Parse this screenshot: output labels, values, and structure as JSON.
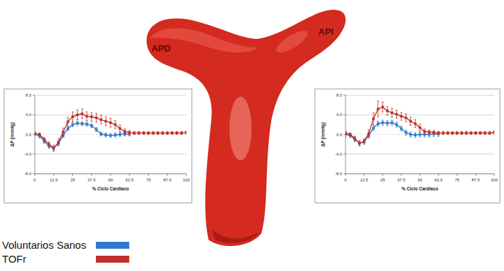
{
  "vessel_labels": [
    "APD",
    "API"
  ],
  "chart_data": [
    {
      "type": "line",
      "xlabel": "% Ciclo Cardiaco",
      "ylabel": "ΔP (mmHg)",
      "x": [
        0,
        3.125,
        6.25,
        9.375,
        12.5,
        15.625,
        18.75,
        21.875,
        25,
        28.125,
        31.25,
        34.375,
        37.5,
        40.625,
        43.75,
        46.875,
        50,
        53.125,
        56.25,
        59.375,
        62.5,
        65.625,
        68.75,
        71.875,
        75,
        78.125,
        81.25,
        84.375,
        87.5,
        90.625,
        93.75,
        96.875,
        100
      ],
      "xlim": [
        0,
        100
      ],
      "xticks": [
        0,
        12.5,
        25,
        37.5,
        50,
        62.5,
        75,
        87.5,
        100
      ],
      "ylim": [
        -8,
        8
      ],
      "yticks": [
        {
          "value": -8,
          "label": "-8.0"
        },
        {
          "value": -4,
          "label": "-4.0"
        },
        {
          "value": 0,
          "label": "0.0"
        },
        {
          "value": 4,
          "label": "4.0"
        },
        {
          "value": 8,
          "label": "8.0"
        }
      ],
      "grid": true,
      "legend": "bottom-left",
      "series": [
        {
          "name": "Voluntarios Sanos",
          "color": "#2f78d0",
          "marker": "square",
          "line_style": "solid",
          "values": [
            0.1,
            -0.3,
            -1.4,
            -2.4,
            -2.8,
            -1.8,
            -0.2,
            1.2,
            2.0,
            2.3,
            2.2,
            2.1,
            1.8,
            1.0,
            0.1,
            -0.1,
            -0.2,
            -0.1,
            0.0,
            0.1,
            0.1,
            null,
            null,
            null,
            null,
            null,
            null,
            null,
            null,
            null,
            null,
            null,
            null
          ],
          "errors": [
            0.4,
            0.4,
            0.4,
            0.4,
            0.4,
            0.4,
            0.4,
            0.4,
            0.4,
            0.4,
            0.4,
            0.4,
            0.4,
            0.4,
            0.4,
            0.4,
            0.4,
            0.4,
            0.4,
            0.4,
            0.4,
            null,
            null,
            null,
            null,
            null,
            null,
            null,
            null,
            null,
            null,
            null,
            null
          ]
        },
        {
          "name": "TOFr",
          "color": "#c0302a",
          "marker": "square",
          "line_style": "solid",
          "values": [
            0.2,
            0.0,
            -1.0,
            -2.0,
            -2.8,
            -1.6,
            0.5,
            2.6,
            3.6,
            4.0,
            4.2,
            3.7,
            3.6,
            3.4,
            3.0,
            2.7,
            2.4,
            2.0,
            1.2,
            0.6,
            0.4,
            0.3,
            0.3,
            0.3,
            0.3,
            0.3,
            0.3,
            0.3,
            0.3,
            0.3,
            0.3,
            0.3,
            0.4
          ],
          "errors": [
            0.3,
            0.3,
            0.4,
            0.5,
            0.6,
            0.7,
            0.8,
            0.9,
            1.0,
            1.0,
            1.0,
            0.9,
            0.9,
            0.9,
            0.9,
            0.9,
            0.9,
            0.8,
            0.7,
            0.5,
            0.4,
            0.3,
            0.3,
            0.3,
            0.3,
            0.3,
            0.3,
            0.3,
            0.3,
            0.3,
            0.3,
            0.3,
            0.3
          ]
        }
      ]
    },
    {
      "type": "line",
      "xlabel": "% Ciclo Cardiaco",
      "ylabel": "ΔP (mmHg)",
      "x": [
        0,
        3.125,
        6.25,
        9.375,
        12.5,
        15.625,
        18.75,
        21.875,
        25,
        28.125,
        31.25,
        34.375,
        37.5,
        40.625,
        43.75,
        46.875,
        50,
        53.125,
        56.25,
        59.375,
        62.5,
        65.625,
        68.75,
        71.875,
        75,
        78.125,
        81.25,
        84.375,
        87.5,
        90.625,
        93.75,
        96.875,
        100
      ],
      "xlim": [
        0,
        100
      ],
      "xticks": [
        0,
        12.5,
        25,
        37.5,
        50,
        62.5,
        75,
        87.5,
        100
      ],
      "ylim": [
        -8,
        8
      ],
      "yticks": [
        {
          "value": -8,
          "label": "-8.0"
        },
        {
          "value": -4,
          "label": "-4.0"
        },
        {
          "value": 0,
          "label": "0.0"
        },
        {
          "value": 4,
          "label": "4.0"
        },
        {
          "value": 8,
          "label": "8.0"
        }
      ],
      "grid": true,
      "series": [
        {
          "name": "Voluntarios Sanos",
          "color": "#2f78d0",
          "marker": "square",
          "line_style": "solid",
          "values": [
            0.0,
            -0.2,
            -1.0,
            -1.8,
            -1.5,
            -0.2,
            1.3,
            2.2,
            2.4,
            2.3,
            2.4,
            2.0,
            1.2,
            0.4,
            0.0,
            -0.1,
            0.0,
            0.0,
            0.0,
            0.1,
            0.1,
            null,
            null,
            null,
            null,
            null,
            null,
            null,
            null,
            null,
            null,
            null,
            null
          ],
          "errors": [
            0.5,
            0.5,
            0.5,
            0.5,
            0.5,
            0.5,
            0.5,
            0.5,
            0.5,
            0.5,
            0.5,
            0.5,
            0.5,
            0.5,
            0.5,
            0.5,
            0.5,
            0.5,
            0.5,
            0.5,
            0.5,
            null,
            null,
            null,
            null,
            null,
            null,
            null,
            null,
            null,
            null,
            null,
            null
          ]
        },
        {
          "name": "TOFr",
          "color": "#c0302a",
          "marker": "square",
          "line_style": "solid",
          "values": [
            0.3,
            0.0,
            -0.8,
            -1.8,
            -1.4,
            0.2,
            3.2,
            5.2,
            5.6,
            4.8,
            4.4,
            4.1,
            3.7,
            3.4,
            2.7,
            2.2,
            1.4,
            0.6,
            0.5,
            0.4,
            0.3,
            0.3,
            0.3,
            0.3,
            0.3,
            0.3,
            0.3,
            0.3,
            0.3,
            0.3,
            0.3,
            0.3,
            0.4
          ],
          "errors": [
            0.3,
            0.3,
            0.4,
            0.5,
            0.5,
            0.7,
            1.2,
            1.6,
            1.0,
            0.9,
            0.9,
            0.8,
            0.8,
            0.8,
            0.8,
            0.8,
            0.7,
            0.5,
            0.4,
            0.4,
            0.3,
            0.3,
            0.3,
            0.3,
            0.3,
            0.3,
            0.3,
            0.3,
            0.3,
            0.3,
            0.3,
            0.3,
            0.3
          ]
        }
      ]
    }
  ]
}
